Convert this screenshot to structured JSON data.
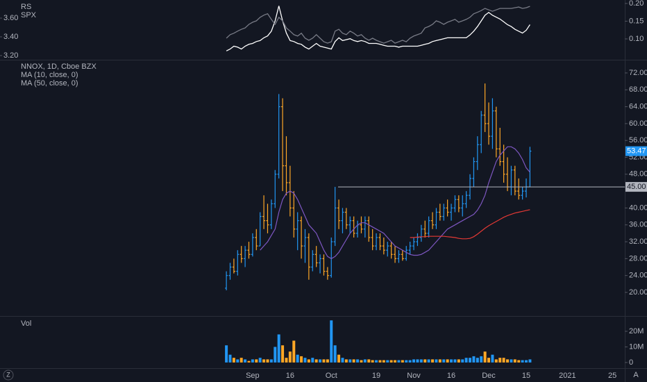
{
  "chart_data": [
    {
      "type": "line",
      "series": [
        {
          "name": "RS",
          "color": "#ffffff",
          "values": [
            3.25,
            3.27,
            3.3,
            3.29,
            3.27,
            3.3,
            3.32,
            3.33,
            3.35,
            3.36,
            3.39,
            3.41,
            3.46,
            3.57,
            3.73,
            3.57,
            3.44,
            3.36,
            3.35,
            3.33,
            3.32,
            3.29,
            3.27,
            3.3,
            3.33,
            3.3,
            3.29,
            3.28,
            3.27,
            3.35,
            3.39,
            3.36,
            3.37,
            3.38,
            3.36,
            3.35,
            3.36,
            3.35,
            3.33,
            3.33,
            3.33,
            3.32,
            3.31,
            3.3,
            3.3,
            3.3,
            3.29,
            3.3,
            3.3,
            3.3,
            3.3,
            3.3,
            3.31,
            3.32,
            3.33,
            3.35,
            3.36,
            3.37,
            3.38,
            3.39,
            3.39,
            3.39,
            3.39,
            3.39,
            3.39,
            3.42,
            3.46,
            3.51,
            3.57,
            3.63,
            3.66,
            3.63,
            3.61,
            3.59,
            3.56,
            3.53,
            3.51,
            3.48,
            3.46,
            3.44,
            3.47,
            3.53
          ]
        },
        {
          "name": "SPX",
          "color": "#787b86",
          "axis": "y2",
          "values": [
            0.102,
            0.112,
            0.116,
            0.122,
            0.127,
            0.131,
            0.141,
            0.147,
            0.151,
            0.161,
            0.167,
            0.171,
            0.155,
            0.141,
            0.161,
            0.151,
            0.131,
            0.122,
            0.112,
            0.108,
            0.116,
            0.102,
            0.096,
            0.102,
            0.112,
            0.102,
            0.092,
            0.088,
            0.092,
            0.122,
            0.127,
            0.116,
            0.112,
            0.122,
            0.116,
            0.108,
            0.112,
            0.102,
            0.096,
            0.102,
            0.096,
            0.092,
            0.088,
            0.092,
            0.096,
            0.088,
            0.092,
            0.096,
            0.092,
            0.102,
            0.108,
            0.112,
            0.116,
            0.131,
            0.135,
            0.141,
            0.151,
            0.147,
            0.141,
            0.147,
            0.151,
            0.155,
            0.147,
            0.151,
            0.155,
            0.161,
            0.171,
            0.175,
            0.18,
            0.186,
            0.182,
            0.178,
            0.182,
            0.186,
            0.186,
            0.186,
            0.186,
            0.188,
            0.19,
            0.186,
            0.188,
            0.192
          ]
        }
      ],
      "ylim": [
        3.163,
        3.793
      ],
      "yticks": [
        {
          "value": 3.2,
          "label": "3.20"
        },
        {
          "value": 3.4,
          "label": "3.40"
        },
        {
          "value": 3.6,
          "label": "3.60"
        }
      ],
      "y2lim": [
        0.0431,
        0.2098
      ],
      "y2ticks": [
        {
          "value": 0.1,
          "label": "0.10"
        },
        {
          "value": 0.15,
          "label": "0.15"
        },
        {
          "value": 0.2,
          "label": "0.20"
        }
      ]
    },
    {
      "type": "ohlc",
      "title": "NNOX, 1D, Cboe BZX",
      "up_color": "#2196f3",
      "down_color": "#ffa726",
      "ohlc": [
        [
          21,
          25,
          20.5,
          24
        ],
        [
          24,
          27,
          23,
          26
        ],
        [
          26,
          28,
          24.5,
          25
        ],
        [
          25,
          30,
          24,
          29
        ],
        [
          29,
          31,
          27,
          28
        ],
        [
          28,
          31,
          26,
          30
        ],
        [
          30,
          32,
          28,
          29
        ],
        [
          29,
          34,
          28.5,
          33
        ],
        [
          33,
          35,
          30,
          31
        ],
        [
          31,
          39,
          31,
          38
        ],
        [
          38,
          43,
          35,
          37
        ],
        [
          37,
          41,
          34,
          36
        ],
        [
          36,
          42,
          35,
          41
        ],
        [
          41,
          49,
          40,
          48
        ],
        [
          48,
          67,
          47,
          64
        ],
        [
          64,
          66,
          44,
          50
        ],
        [
          50,
          57,
          43,
          46
        ],
        [
          46,
          50,
          38,
          40
        ],
        [
          40,
          44,
          33,
          35
        ],
        [
          35,
          39,
          30,
          37
        ],
        [
          37,
          38,
          28,
          31
        ],
        [
          31,
          35,
          27,
          33
        ],
        [
          33,
          34,
          23,
          26
        ],
        [
          26,
          30,
          25,
          29
        ],
        [
          29,
          31,
          26,
          27
        ],
        [
          27,
          29,
          24.5,
          28
        ],
        [
          28,
          29,
          24,
          25
        ],
        [
          25,
          26,
          23,
          24
        ],
        [
          24,
          33,
          23.5,
          32
        ],
        [
          32,
          45,
          31,
          40
        ],
        [
          40,
          42,
          35,
          37
        ],
        [
          37,
          40,
          34,
          39
        ],
        [
          39,
          40,
          35,
          36
        ],
        [
          36,
          38,
          34,
          37
        ],
        [
          37,
          38,
          33,
          34
        ],
        [
          34,
          37,
          33,
          36
        ],
        [
          36,
          38,
          34,
          35
        ],
        [
          35,
          38,
          33,
          37
        ],
        [
          37,
          38,
          32,
          33
        ],
        [
          33,
          35,
          30,
          31
        ],
        [
          31,
          34,
          30,
          33
        ],
        [
          33,
          34,
          30,
          31
        ],
        [
          31,
          33,
          29,
          30
        ],
        [
          30,
          32,
          28.5,
          31
        ],
        [
          31,
          32,
          28,
          29
        ],
        [
          29,
          31,
          27,
          28
        ],
        [
          28,
          30,
          27,
          29
        ],
        [
          29,
          30,
          27.5,
          28
        ],
        [
          28,
          31,
          27.5,
          30
        ],
        [
          30,
          32,
          29,
          31
        ],
        [
          31,
          33,
          30,
          32
        ],
        [
          32,
          34,
          31,
          33
        ],
        [
          33,
          36,
          32,
          35
        ],
        [
          35,
          37,
          33,
          34
        ],
        [
          34,
          38,
          33,
          37
        ],
        [
          37,
          39,
          35,
          36
        ],
        [
          36,
          40,
          35,
          39
        ],
        [
          39,
          41,
          37,
          38
        ],
        [
          38,
          41,
          37,
          40
        ],
        [
          40,
          42,
          38,
          39
        ],
        [
          39,
          41,
          37,
          40
        ],
        [
          40,
          43,
          39,
          42
        ],
        [
          42,
          43,
          39,
          40
        ],
        [
          40,
          43,
          38,
          41
        ],
        [
          41,
          44,
          40,
          43
        ],
        [
          43,
          48,
          42,
          47
        ],
        [
          47,
          52,
          45,
          51
        ],
        [
          51,
          57,
          49,
          55
        ],
        [
          55,
          63,
          53,
          62
        ],
        [
          62,
          69.5,
          58,
          60
        ],
        [
          60,
          65,
          55,
          57
        ],
        [
          57,
          66,
          54,
          63
        ],
        [
          63,
          64,
          52,
          54
        ],
        [
          54,
          59,
          50,
          51
        ],
        [
          51,
          55,
          46,
          48
        ],
        [
          48,
          52,
          44,
          45
        ],
        [
          45,
          50,
          43,
          49
        ],
        [
          49,
          50,
          43,
          44
        ],
        [
          44,
          47,
          42,
          43
        ],
        [
          43,
          45,
          42,
          44
        ],
        [
          44,
          47,
          42.5,
          45
        ],
        [
          45,
          54.5,
          45,
          53.47
        ]
      ],
      "series": [
        {
          "name": "MA (10, close, 0)",
          "color": "#7e57c2",
          "values": [
            null,
            null,
            null,
            null,
            null,
            null,
            null,
            null,
            null,
            30,
            31,
            32,
            33.5,
            35,
            39,
            42,
            43.5,
            44,
            43.5,
            42,
            40,
            38,
            36,
            35,
            34,
            32,
            30,
            28.5,
            28,
            28.5,
            29.5,
            31,
            32.5,
            34,
            35,
            36,
            36.5,
            36.5,
            36,
            35.5,
            35,
            34.5,
            34,
            33,
            32,
            31,
            30.5,
            30,
            29.5,
            29,
            28.8,
            28.8,
            29,
            29.5,
            30,
            31,
            32,
            33,
            34,
            35,
            35.5,
            36,
            36.5,
            37,
            37.5,
            38,
            38.5,
            39.5,
            41,
            43,
            46,
            48.5,
            51,
            52.5,
            53.5,
            54.5,
            54.5,
            54,
            53,
            51.5,
            49.5,
            48.5
          ]
        },
        {
          "name": "MA (50, close, 0)",
          "color": "#e53935",
          "values": [
            null,
            null,
            null,
            null,
            null,
            null,
            null,
            null,
            null,
            null,
            null,
            null,
            null,
            null,
            null,
            null,
            null,
            null,
            null,
            null,
            null,
            null,
            null,
            null,
            null,
            null,
            null,
            null,
            null,
            null,
            null,
            null,
            null,
            null,
            null,
            null,
            null,
            null,
            null,
            null,
            null,
            null,
            null,
            null,
            null,
            null,
            null,
            null,
            null,
            33,
            33,
            33.1,
            33.2,
            33.2,
            33.3,
            33.3,
            33.3,
            33.3,
            33.3,
            33.2,
            33.1,
            33,
            32.8,
            32.7,
            32.7,
            32.8,
            33.2,
            33.8,
            34.5,
            35.2,
            35.8,
            36.3,
            36.8,
            37.3,
            37.8,
            38.2,
            38.5,
            38.8,
            39,
            39.2,
            39.4,
            39.6
          ]
        }
      ],
      "hline": {
        "value": 45,
        "label": "45.00"
      },
      "ylim": [
        14.4,
        74.8
      ],
      "yticks": [
        {
          "value": 20,
          "label": "20.00"
        },
        {
          "value": 24,
          "label": "24.00"
        },
        {
          "value": 28,
          "label": "28.00"
        },
        {
          "value": 32,
          "label": "32.00"
        },
        {
          "value": 36,
          "label": "36.00"
        },
        {
          "value": 40,
          "label": "40.00"
        },
        {
          "value": 48,
          "label": "48.00"
        },
        {
          "value": 52,
          "label": "52.00"
        },
        {
          "value": 56,
          "label": "56.00"
        },
        {
          "value": 60,
          "label": "60.00"
        },
        {
          "value": 64,
          "label": "64.00"
        },
        {
          "value": 68,
          "label": "68.00"
        },
        {
          "value": 72,
          "label": "72.00"
        }
      ],
      "xlim": [
        -60.4,
        106.3
      ],
      "xticks": [
        {
          "value": 7,
          "label": "Sep"
        },
        {
          "value": 17,
          "label": "16"
        },
        {
          "value": 28,
          "label": "Oct"
        },
        {
          "value": 40,
          "label": "19"
        },
        {
          "value": 50,
          "label": "Nov"
        },
        {
          "value": 60,
          "label": "16"
        },
        {
          "value": 70,
          "label": "Dec"
        },
        {
          "value": 80,
          "label": "15"
        },
        {
          "value": 91,
          "label": "2021"
        },
        {
          "value": 103,
          "label": "25"
        }
      ]
    },
    {
      "type": "bar",
      "title": "Vol",
      "values": [
        11,
        5,
        3,
        2,
        3,
        2,
        1,
        2,
        2,
        3,
        2,
        2,
        2,
        10,
        18,
        11,
        3,
        7,
        14,
        5,
        4,
        3,
        2,
        3,
        2,
        2,
        2,
        2,
        27,
        11,
        5,
        3,
        2,
        2,
        2,
        2,
        1.5,
        2,
        2,
        1.5,
        1.5,
        1.5,
        1.5,
        1.5,
        1.5,
        1.5,
        1.5,
        1.5,
        1.5,
        1.5,
        2,
        2,
        2,
        2,
        2,
        2,
        2,
        2,
        2,
        2,
        2,
        2,
        2,
        2,
        3,
        3,
        4,
        3,
        4,
        7,
        3,
        5,
        2,
        3,
        3,
        2,
        2,
        2,
        1.5,
        1.5,
        1.5,
        2
      ],
      "ylim": [
        -3.6,
        28.9
      ],
      "yticks": [
        0,
        {
          "value": 10,
          "label": "10M"
        },
        {
          "value": 20,
          "label": "20M"
        }
      ]
    }
  ],
  "ui": {
    "zoom_button": "Z",
    "auto_button": "A"
  }
}
